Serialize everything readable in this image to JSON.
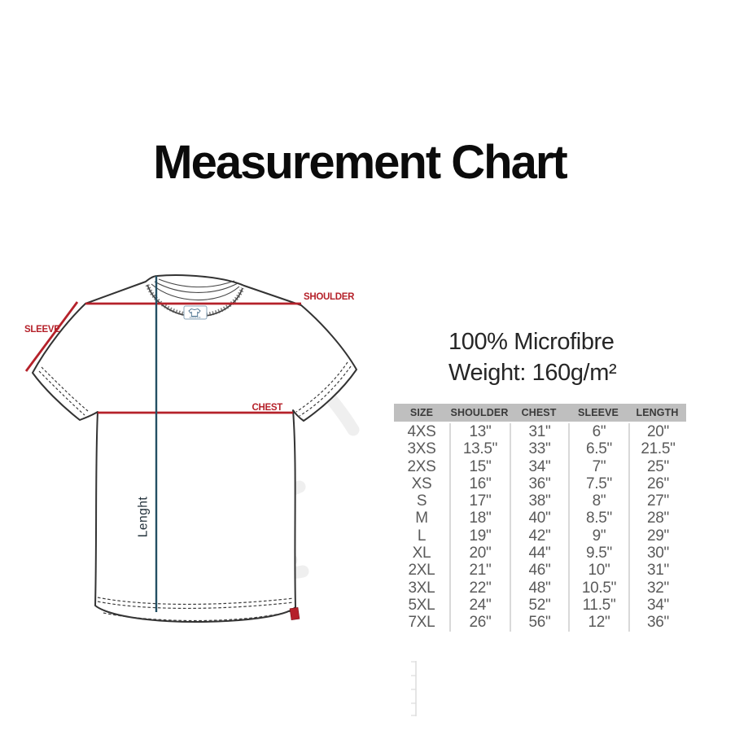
{
  "page": {
    "title": "Measurement Chart"
  },
  "diagram": {
    "labels": {
      "sleeve": "SLEEVE",
      "shoulder": "SHOULDER",
      "chest": "CHEST",
      "length": "Lenght"
    }
  },
  "material": {
    "line1": "100% Microfibre",
    "line2": "Weight: 160g/m²"
  },
  "table": {
    "columns": [
      "SIZE",
      "SHOULDER",
      "CHEST",
      "SLEEVE",
      "LENGTH"
    ],
    "rows": [
      [
        "4XS",
        "13\"",
        "31\"",
        "6\"",
        "20\""
      ],
      [
        "3XS",
        "13.5\"",
        "33\"",
        "6.5\"",
        "21.5\""
      ],
      [
        "2XS",
        "15\"",
        "34\"",
        "7\"",
        "25\""
      ],
      [
        "XS",
        "16\"",
        "36\"",
        "7.5\"",
        "26\""
      ],
      [
        "S",
        "17\"",
        "38\"",
        "8\"",
        "27\""
      ],
      [
        "M",
        "18\"",
        "40\"",
        "8.5\"",
        "28\""
      ],
      [
        "L",
        "19\"",
        "42\"",
        "9\"",
        "29\""
      ],
      [
        "XL",
        "20\"",
        "44\"",
        "9.5\"",
        "30\""
      ],
      [
        "2XL",
        "21\"",
        "46\"",
        "10\"",
        "31\""
      ],
      [
        "3XL",
        "22\"",
        "48\"",
        "10.5\"",
        "32\""
      ],
      [
        "5XL",
        "24\"",
        "52\"",
        "11.5\"",
        "34\""
      ],
      [
        "7XL",
        "26\"",
        "56\"",
        "12\"",
        "36\""
      ]
    ]
  },
  "colors": {
    "measure_red": "#b5212a",
    "length_line_blue": "#234f63",
    "outline_dark": "#333333",
    "header_bg": "#bfbfbf"
  }
}
